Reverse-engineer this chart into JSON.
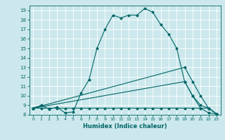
{
  "xlabel": "Humidex (Indice chaleur)",
  "ylabel": "",
  "xlim": [
    -0.5,
    23.5
  ],
  "ylim": [
    8,
    19.5
  ],
  "yticks": [
    8,
    9,
    10,
    11,
    12,
    13,
    14,
    15,
    16,
    17,
    18,
    19
  ],
  "xticks": [
    0,
    1,
    2,
    3,
    4,
    5,
    6,
    7,
    8,
    9,
    10,
    11,
    12,
    13,
    14,
    15,
    16,
    17,
    18,
    19,
    20,
    21,
    22,
    23
  ],
  "bg_color": "#cce8ec",
  "grid_color": "#ffffff",
  "line_color": "#006666",
  "line1_x": [
    0,
    1,
    2,
    3,
    4,
    5,
    6,
    7,
    8,
    9,
    10,
    11,
    12,
    13,
    14,
    15,
    16,
    17,
    18,
    19,
    20,
    21,
    22,
    23
  ],
  "line1_y": [
    8.7,
    9.0,
    8.6,
    8.8,
    8.2,
    8.3,
    10.3,
    11.7,
    15.0,
    17.0,
    18.5,
    18.2,
    18.5,
    18.5,
    19.2,
    18.8,
    17.5,
    16.5,
    15.0,
    11.5,
    10.0,
    8.7,
    8.2,
    8.1
  ],
  "line2_x": [
    0,
    1,
    2,
    3,
    4,
    5,
    6,
    7,
    8,
    9,
    10,
    11,
    12,
    13,
    14,
    15,
    16,
    17,
    18,
    19,
    20,
    21,
    22,
    23
  ],
  "line2_y": [
    8.7,
    8.7,
    8.7,
    8.7,
    8.7,
    8.7,
    8.7,
    8.7,
    8.7,
    8.7,
    8.7,
    8.7,
    8.7,
    8.7,
    8.7,
    8.7,
    8.7,
    8.7,
    8.7,
    8.7,
    8.7,
    8.7,
    8.7,
    8.1
  ],
  "line3_x": [
    0,
    19,
    20,
    21,
    22,
    23
  ],
  "line3_y": [
    8.7,
    13.0,
    11.5,
    10.0,
    8.7,
    8.1
  ],
  "line4_x": [
    0,
    19,
    20,
    21,
    22,
    23
  ],
  "line4_y": [
    8.7,
    11.5,
    10.0,
    9.0,
    8.7,
    8.1
  ]
}
